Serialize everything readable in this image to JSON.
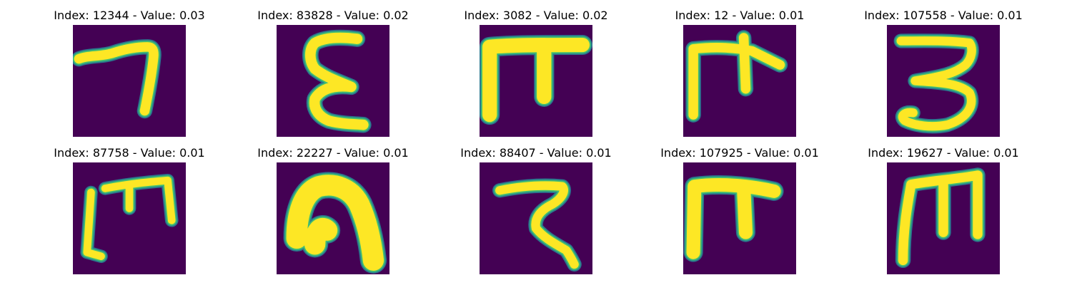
{
  "figure": {
    "colors": {
      "background": "#440154",
      "stroke_core": "#fde725",
      "stroke_mid": "#3fbc73",
      "stroke_edge": "#2a788e"
    },
    "panels": [
      {
        "title": "Index: 12344 - Value: 0.03"
      },
      {
        "title": "Index: 83828 - Value: 0.02"
      },
      {
        "title": "Index: 3082 - Value: 0.02"
      },
      {
        "title": "Index: 12 - Value: 0.01"
      },
      {
        "title": "Index: 107558 - Value: 0.01"
      },
      {
        "title": "Index: 87758 - Value: 0.01"
      },
      {
        "title": "Index: 22227 - Value: 0.01"
      },
      {
        "title": "Index: 88407 - Value: 0.01"
      },
      {
        "title": "Index: 107925 - Value: 0.01"
      },
      {
        "title": "Index: 19627 - Value: 0.01"
      }
    ]
  }
}
